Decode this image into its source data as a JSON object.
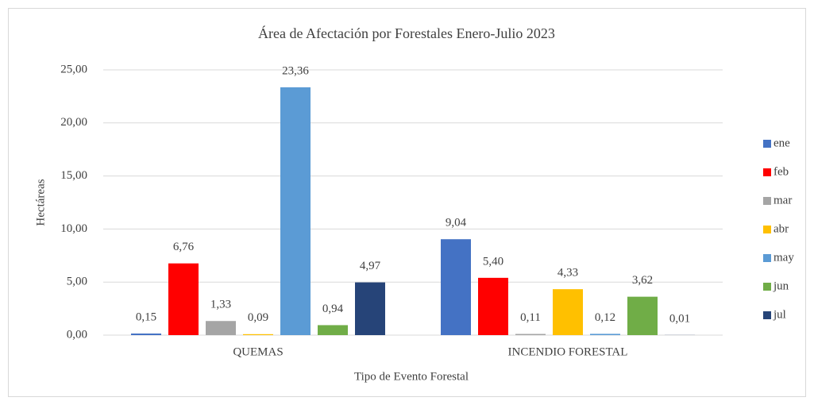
{
  "chart_data": {
    "type": "bar",
    "title": "Área de Afectación por Forestales Enero-Julio 2023",
    "x_label": "Tipo de Evento Forestal",
    "y_label": "Hectáreas",
    "categories": [
      "QUEMAS",
      "INCENDIO FORESTAL"
    ],
    "series": [
      {
        "name": "ene",
        "color": "#4472c4",
        "values": [
          0.15,
          9.04
        ],
        "value_labels": [
          "0,15",
          "9,04"
        ]
      },
      {
        "name": "feb",
        "color": "#ff0000",
        "values": [
          6.76,
          5.4
        ],
        "value_labels": [
          "6,76",
          "5,40"
        ]
      },
      {
        "name": "mar",
        "color": "#a5a5a5",
        "values": [
          1.33,
          0.11
        ],
        "value_labels": [
          "1,33",
          "0,11"
        ]
      },
      {
        "name": "abr",
        "color": "#ffc000",
        "values": [
          0.09,
          4.33
        ],
        "value_labels": [
          "0,09",
          "4,33"
        ]
      },
      {
        "name": "may",
        "color": "#5b9bd5",
        "values": [
          23.36,
          0.12
        ],
        "value_labels": [
          "23,36",
          "0,12"
        ]
      },
      {
        "name": "jun",
        "color": "#70ad47",
        "values": [
          0.94,
          3.62
        ],
        "value_labels": [
          "0,94",
          "3,62"
        ]
      },
      {
        "name": "jul",
        "color": "#264478",
        "values": [
          4.97,
          0.01
        ],
        "value_labels": [
          "4,97",
          "0,01"
        ]
      }
    ],
    "ylim": [
      0,
      25
    ],
    "yticks": [
      {
        "value": 0,
        "label": "0,00"
      },
      {
        "value": 5,
        "label": "5,00"
      },
      {
        "value": 10,
        "label": "10,00"
      },
      {
        "value": 15,
        "label": "15,00"
      },
      {
        "value": 20,
        "label": "20,00"
      },
      {
        "value": 25,
        "label": "25,00"
      }
    ],
    "grid": true,
    "legend": "right"
  }
}
